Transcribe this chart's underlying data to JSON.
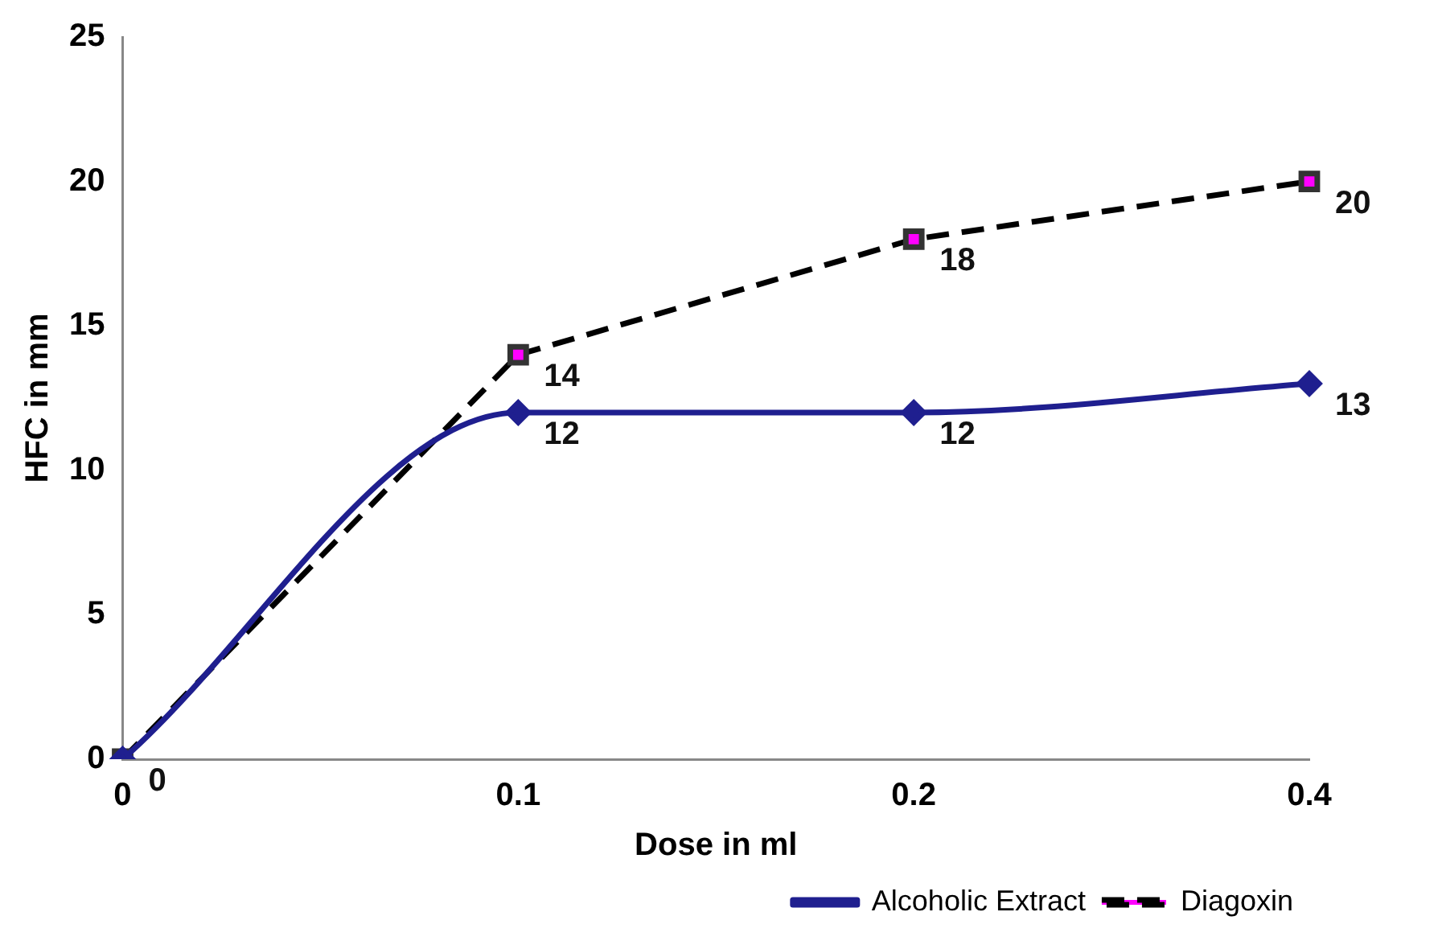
{
  "chart_data": {
    "type": "line",
    "xlabel": "Dose in ml",
    "ylabel": "HFC in mm",
    "categories": [
      "0",
      "0.1",
      "0.2",
      "0.4"
    ],
    "ylim": [
      0,
      25
    ],
    "yticks": [
      0,
      5,
      10,
      15,
      20,
      25
    ],
    "grid": false,
    "legend": "bottom right",
    "series": [
      {
        "name": "Alcoholic Extract",
        "color": "#1f1f8f",
        "values": [
          0,
          12,
          12,
          13
        ],
        "marker": "diamond",
        "line_style": "solid",
        "value_labels": [
          "0",
          "12",
          "12",
          "13"
        ]
      },
      {
        "name": "Diagoxin",
        "color": "#000000",
        "colors": [
          "#ff00ff",
          "#ff00ff",
          "#ff00ff",
          "#ff00ff"
        ],
        "values": [
          0,
          14,
          18,
          20
        ],
        "marker": "square",
        "line_style": "dashed",
        "value_labels": [
          null,
          "14",
          "18",
          "20"
        ]
      }
    ]
  }
}
